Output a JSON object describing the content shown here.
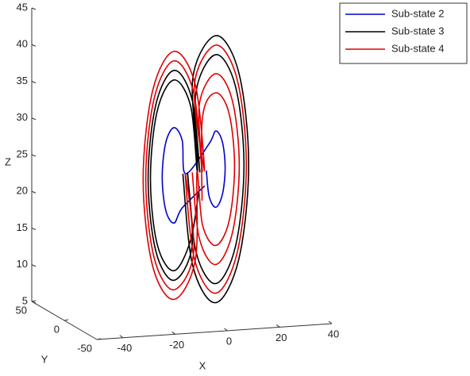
{
  "chart_data": {
    "type": "line3d",
    "xlabel": "X",
    "ylabel": "Y",
    "zlabel": "Z",
    "xlim": [
      -50,
      40
    ],
    "ylim": [
      -50,
      50
    ],
    "zlim": [
      5,
      45
    ],
    "xticks": [
      -40,
      -20,
      0,
      20,
      40
    ],
    "yticks": [
      -50,
      0,
      50
    ],
    "zticks": [
      5,
      10,
      15,
      20,
      25,
      30,
      35,
      40,
      45
    ],
    "legend": "upper-right",
    "series": [
      {
        "name": "Sub-state 2",
        "color": "#0000cc",
        "x": [
          5,
          6.2,
          9,
          11.8,
          13,
          11.8,
          9,
          6.2,
          -4,
          -5.5,
          -9,
          -12.5,
          -14,
          -12.5,
          -9,
          -5.5,
          4
        ],
        "y": [
          2.4,
          2.9,
          4,
          5.1,
          5.6,
          5.1,
          4,
          2.9,
          -2,
          -2.6,
          -4,
          -5.4,
          -6,
          -5.4,
          -4,
          -2.6,
          1
        ],
        "z": [
          24,
          20.4,
          18.8,
          20.4,
          24,
          27.6,
          29.2,
          27.6,
          24,
          28.6,
          30.5,
          28.6,
          24,
          19.4,
          17.5,
          19.4,
          22
        ]
      },
      {
        "name": "Sub-state 3",
        "color": "#000000",
        "x": [
          -5,
          -0.8,
          9,
          18.8,
          23,
          18.8,
          9,
          -0.8,
          2,
          -1.3,
          -9,
          -16.7,
          -20,
          -16.7,
          -9,
          -1.3,
          -3,
          0.6,
          9,
          17.4,
          21,
          17.4,
          9,
          0.6,
          1,
          -1.9,
          -9,
          -16.1,
          -19,
          -16.1,
          -9,
          -1.9,
          2
        ],
        "y": [
          -1.6,
          0.1,
          4,
          7.9,
          9.6,
          7.9,
          4,
          0.1,
          0.4,
          -0.9,
          -4,
          -7.1,
          -8.4,
          -7.1,
          -4,
          -0.9,
          -0.8,
          0.6,
          4,
          7.4,
          8.8,
          7.4,
          4,
          0.6,
          0,
          -1.2,
          -4,
          -6.8,
          -8,
          -6.8,
          -4,
          -1.2,
          1
        ],
        "z": [
          24,
          11.3,
          5.8,
          11.3,
          24,
          36.7,
          42.2,
          36.7,
          24,
          34,
          38.3,
          34,
          24,
          14,
          9.7,
          14,
          24,
          13.1,
          8.4,
          13.1,
          24,
          34.9,
          39.6,
          34.9,
          24,
          33.1,
          37,
          33.1,
          24,
          14.9,
          11,
          14.9,
          22
        ]
      },
      {
        "name": "Sub-state 4",
        "color": "#dd0000",
        "x": [
          -1,
          2,
          9,
          16,
          19,
          16,
          9,
          2,
          3,
          -0.6,
          -9,
          -17.4,
          -21,
          -17.4,
          -9,
          -0.6,
          -4,
          -0.1,
          9,
          18.1,
          22,
          18.1,
          9,
          -0.1,
          4,
          0.1,
          -9,
          -18.1,
          -22,
          -18.1,
          -9,
          0.1,
          1,
          3.4,
          9,
          14.6,
          17,
          14.6,
          9,
          3.4,
          3
        ],
        "y": [
          0,
          1.2,
          4,
          6.8,
          8,
          6.8,
          4,
          1.2,
          0.8,
          -0.6,
          -4,
          -7.4,
          -8.8,
          -7.4,
          -4,
          -0.6,
          -1.2,
          0.4,
          4,
          7.6,
          9.2,
          7.6,
          4,
          0.4,
          1.2,
          -0.4,
          -4,
          -7.6,
          -8.8,
          -7.6,
          -4,
          -0.4,
          0.8,
          1.8,
          4,
          6.2,
          7.2,
          6.2,
          4,
          1.8,
          1
        ],
        "z": [
          24,
          14.9,
          11,
          14.9,
          24,
          33.1,
          37,
          33.1,
          24,
          34.9,
          39.6,
          34.9,
          24,
          13.1,
          8.4,
          13.1,
          24,
          12.2,
          7.1,
          12.2,
          24,
          35.8,
          40.9,
          35.8,
          24,
          35.9,
          40.9,
          35.9,
          24,
          12.1,
          7.1,
          12.1,
          24,
          16.6,
          13.6,
          16.6,
          24,
          31.4,
          34.4,
          31.4,
          20
        ]
      }
    ]
  }
}
